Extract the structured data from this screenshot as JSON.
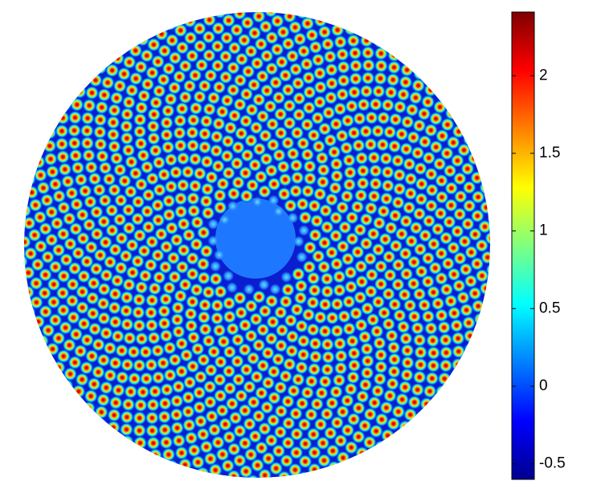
{
  "chart_data": {
    "type": "heatmap",
    "colormap": "jet",
    "clim": [
      -0.6,
      2.41
    ],
    "cticks": [
      -0.5,
      0,
      0.5,
      1,
      1.5,
      2
    ]
  }
}
